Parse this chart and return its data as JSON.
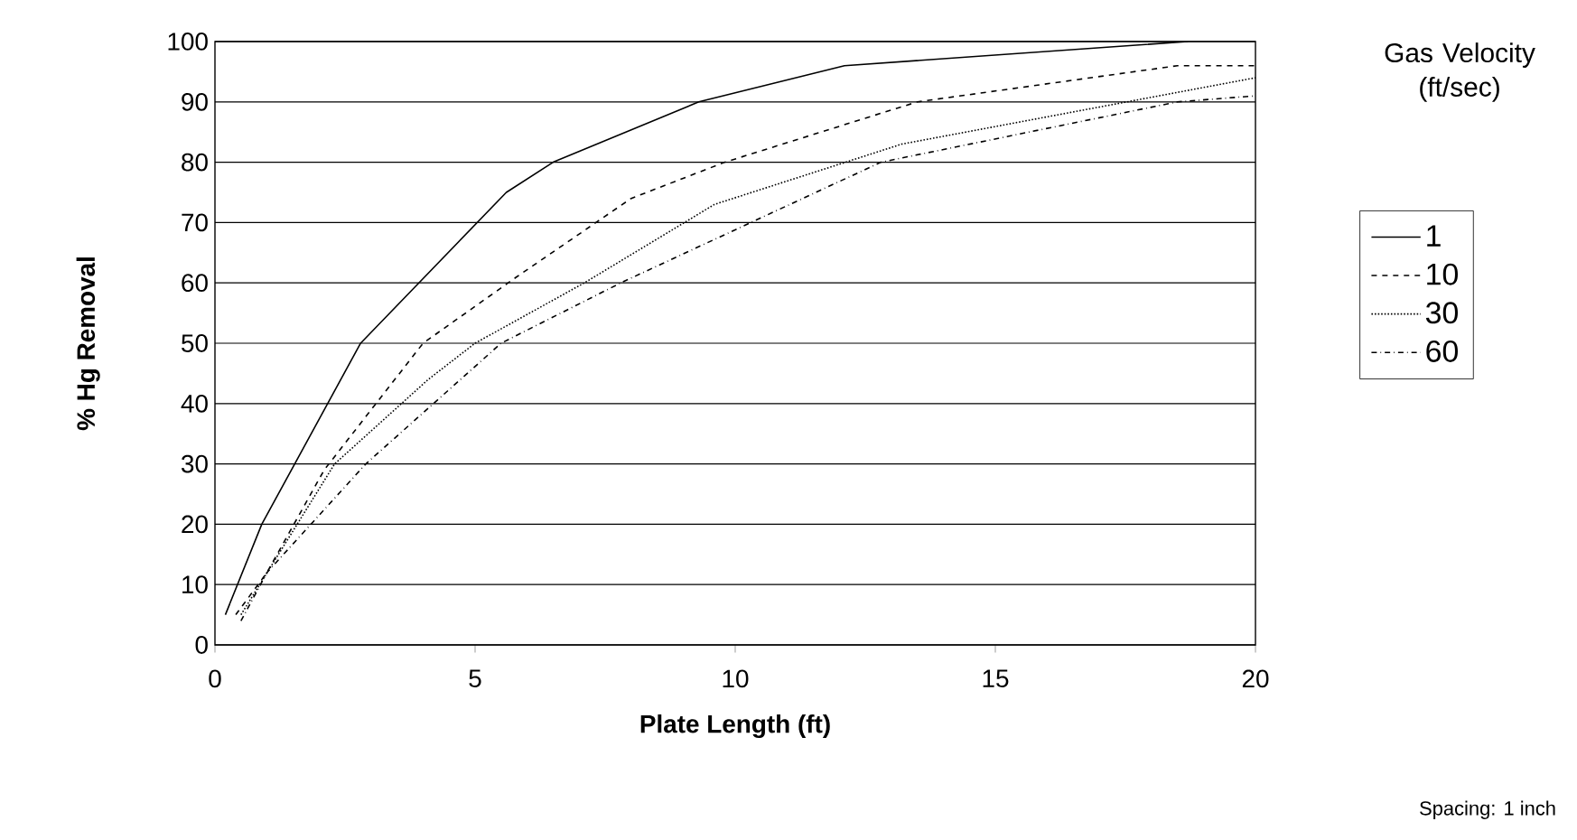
{
  "chart_data": {
    "type": "line",
    "xlabel": "Plate Length (ft)",
    "ylabel": "% Hg Removal",
    "legend_title": "Gas Velocity (ft/sec)",
    "legend": "right",
    "grid": "y",
    "marker": "none",
    "xlim": [
      0,
      20
    ],
    "xticks": [
      0,
      5,
      10,
      15,
      20
    ],
    "ylim": [
      0,
      100
    ],
    "yticks": [
      0,
      10,
      20,
      30,
      40,
      50,
      60,
      70,
      80,
      90,
      100
    ],
    "series": [
      {
        "name": "1",
        "color": "#000000",
        "line_style": "solid",
        "x": [
          0.2,
          0.9,
          2.8,
          5.6,
          6.5,
          9.3,
          12.1,
          18.7
        ],
        "values": [
          5,
          20,
          50,
          75,
          80,
          90,
          96,
          100
        ]
      },
      {
        "name": "10",
        "color": "#000000",
        "line_style": "dashed",
        "x": [
          0.4,
          1.0,
          2.1,
          4.0,
          5.8,
          8.0,
          9.8,
          13.5,
          18.5,
          20
        ],
        "values": [
          5,
          12,
          29,
          50,
          61,
          74,
          80,
          90,
          96,
          96
        ]
      },
      {
        "name": "30",
        "color": "#000000",
        "line_style": "dotted",
        "x": [
          0.5,
          2.3,
          4.1,
          5.0,
          7.1,
          9.6,
          13.2,
          20
        ],
        "values": [
          5,
          30,
          44,
          50,
          60,
          73,
          83,
          94
        ]
      },
      {
        "name": "60",
        "color": "#000000",
        "line_style": "dashdot",
        "x": [
          0.5,
          1.0,
          2.9,
          5.5,
          7.8,
          9.8,
          12.8,
          18.5,
          20
        ],
        "values": [
          4,
          12,
          30,
          50,
          60,
          68,
          80,
          90,
          91
        ]
      }
    ],
    "annotations": [
      "Spacing: 1 inch"
    ]
  }
}
